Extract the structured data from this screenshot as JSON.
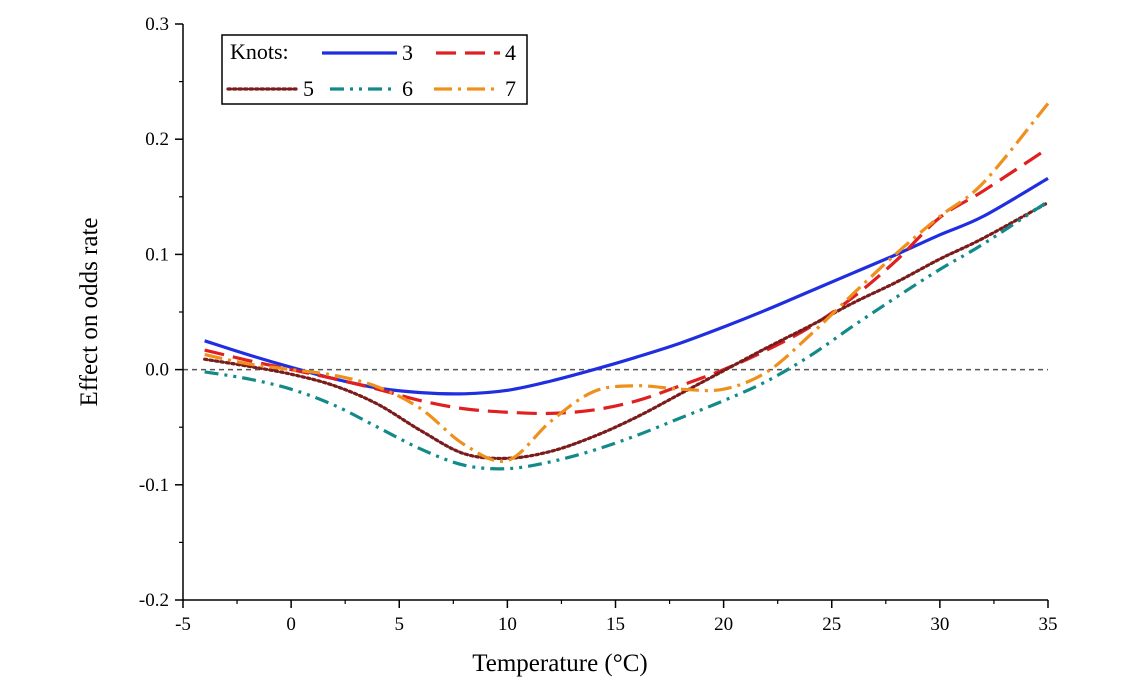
{
  "chart_data": {
    "type": "line",
    "title": "",
    "xlabel": "Temperature (°C)",
    "ylabel": "Effect on odds rate",
    "xlim": [
      -5,
      35
    ],
    "ylim": [
      -0.2,
      0.3
    ],
    "x_ticks": [
      "-5",
      "0",
      "5",
      "10",
      "15",
      "20",
      "25",
      "30",
      "35"
    ],
    "y_ticks": [
      "-0.2",
      "-0.1",
      "0.0",
      "0.1",
      "0.2",
      "0.3"
    ],
    "reference_line": {
      "y": 0.0,
      "style": "dashed",
      "color": "#555555"
    },
    "grid": false,
    "legend": {
      "title": "Knots:",
      "placement": "top-left"
    },
    "series": [
      {
        "name": "3",
        "color": "#1f2fe0",
        "dash": "solid",
        "x": [
          -4,
          -2,
          0,
          2,
          4,
          6,
          8,
          10,
          12,
          14,
          16,
          18,
          20,
          22,
          24,
          26,
          28,
          30,
          32,
          35
        ],
        "y": [
          0.025,
          0.013,
          0.002,
          -0.008,
          -0.016,
          -0.02,
          -0.021,
          -0.018,
          -0.01,
          0.0,
          0.011,
          0.023,
          0.037,
          0.052,
          0.068,
          0.084,
          0.1,
          0.117,
          0.133,
          0.166
        ]
      },
      {
        "name": "4",
        "color": "#e02020",
        "dash": "dashed",
        "x": [
          -4,
          -2,
          0,
          2,
          4,
          6,
          8,
          10,
          12,
          14,
          16,
          18,
          20,
          22,
          24,
          26,
          28,
          30,
          32,
          35
        ],
        "y": [
          0.017,
          0.008,
          0.0,
          -0.008,
          -0.017,
          -0.027,
          -0.034,
          -0.037,
          -0.038,
          -0.035,
          -0.027,
          -0.014,
          0.0,
          0.017,
          0.037,
          0.063,
          0.095,
          0.132,
          0.155,
          0.192
        ]
      },
      {
        "name": "5",
        "color": "#7a1c1c",
        "dash": "dotted",
        "x": [
          -4,
          -2,
          0,
          2,
          4,
          6,
          8,
          10,
          12,
          14,
          16,
          18,
          20,
          22,
          24,
          26,
          28,
          30,
          32,
          35
        ],
        "y": [
          0.009,
          0.003,
          -0.004,
          -0.014,
          -0.03,
          -0.053,
          -0.073,
          -0.077,
          -0.071,
          -0.058,
          -0.041,
          -0.021,
          -0.001,
          0.019,
          0.038,
          0.058,
          0.076,
          0.096,
          0.114,
          0.145
        ]
      },
      {
        "name": "6",
        "color": "#138a8a",
        "dash": "dash-dot-dot",
        "x": [
          -4,
          -2,
          0,
          2,
          4,
          6,
          8,
          10,
          12,
          14,
          16,
          18,
          20,
          22,
          24,
          26,
          28,
          30,
          32,
          35
        ],
        "y": [
          -0.002,
          -0.008,
          -0.017,
          -0.031,
          -0.05,
          -0.069,
          -0.083,
          -0.086,
          -0.08,
          -0.07,
          -0.057,
          -0.042,
          -0.027,
          -0.01,
          0.012,
          0.038,
          0.063,
          0.087,
          0.109,
          0.146
        ]
      },
      {
        "name": "7",
        "color": "#f0901c",
        "dash": "dash-dot",
        "x": [
          -4,
          -2,
          0,
          2,
          4,
          6,
          8,
          10,
          12,
          14,
          16,
          18,
          20,
          22,
          24,
          26,
          28,
          30,
          32,
          35
        ],
        "y": [
          0.013,
          0.005,
          0.0,
          -0.005,
          -0.015,
          -0.034,
          -0.065,
          -0.079,
          -0.045,
          -0.019,
          -0.014,
          -0.017,
          -0.017,
          -0.002,
          0.03,
          0.066,
          0.101,
          0.133,
          0.162,
          0.231
        ]
      }
    ]
  }
}
